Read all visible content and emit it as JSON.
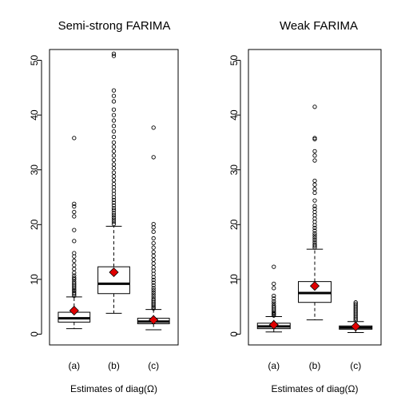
{
  "chart_data": [
    {
      "type": "boxplot",
      "title": "Semi-strong FARIMA",
      "xlabel": "Estimates of diag(Ω)",
      "ylabel": "",
      "ylim": [
        0,
        50
      ],
      "yticks": [
        0,
        10,
        20,
        30,
        40,
        50
      ],
      "categories": [
        "(a)",
        "(b)",
        "(c)"
      ],
      "boxes": [
        {
          "category": "(a)",
          "lower_whisker": 1.0,
          "q1": 2.2,
          "median": 2.9,
          "q3": 4.0,
          "upper_whisker": 6.8,
          "mean": 4.3,
          "outliers": [
            7.0,
            7.3,
            7.6,
            7.9,
            8.1,
            8.4,
            8.7,
            9.0,
            9.3,
            9.6,
            10.0,
            10.3,
            10.7,
            11.2,
            11.9,
            12.6,
            13.4,
            14.2,
            14.8,
            17.0,
            19.0,
            21.5,
            22.3,
            23.3,
            23.8,
            35.8
          ]
        },
        {
          "category": "(b)",
          "lower_whisker": 3.8,
          "q1": 7.4,
          "median": 9.2,
          "q3": 12.3,
          "upper_whisker": 19.7,
          "mean": 11.3,
          "outliers": [
            20.1,
            20.5,
            20.9,
            21.3,
            21.7,
            22.1,
            22.6,
            23.0,
            23.5,
            24.0,
            24.5,
            25.0,
            25.6,
            26.2,
            26.8,
            27.4,
            28.1,
            28.8,
            29.5,
            30.3,
            31.0,
            31.8,
            32.6,
            33.4,
            34.2,
            35.0,
            36.0,
            37.0,
            38.0,
            39.0,
            40.0,
            41.0,
            42.5,
            43.5,
            44.5,
            50.8,
            51.2
          ]
        },
        {
          "category": "(c)",
          "lower_whisker": 0.8,
          "q1": 1.9,
          "median": 2.3,
          "q3": 2.9,
          "upper_whisker": 4.5,
          "mean": 2.6,
          "outliers": [
            4.7,
            4.9,
            5.2,
            5.5,
            5.8,
            6.1,
            6.4,
            6.8,
            7.2,
            7.6,
            8.0,
            8.4,
            8.9,
            9.4,
            9.9,
            10.4,
            11.0,
            11.6,
            12.2,
            12.9,
            13.6,
            14.3,
            15.0,
            15.8,
            16.6,
            17.5,
            18.7,
            19.5,
            20.1,
            32.3,
            37.7
          ]
        }
      ]
    },
    {
      "type": "boxplot",
      "title": "Weak FARIMA",
      "xlabel": "Estimates of diag(Ω)",
      "ylabel": "",
      "ylim": [
        0,
        50
      ],
      "yticks": [
        0,
        10,
        20,
        30,
        40,
        50
      ],
      "categories": [
        "(a)",
        "(b)",
        "(c)"
      ],
      "boxes": [
        {
          "category": "(a)",
          "lower_whisker": 0.4,
          "q1": 1.0,
          "median": 1.4,
          "q3": 2.0,
          "upper_whisker": 3.2,
          "mean": 1.7,
          "outliers": [
            3.4,
            3.6,
            3.8,
            4.0,
            4.3,
            4.6,
            4.9,
            5.2,
            5.6,
            6.0,
            6.5,
            7.0,
            8.4,
            9.2,
            12.3
          ]
        },
        {
          "category": "(b)",
          "lower_whisker": 2.6,
          "q1": 5.8,
          "median": 7.5,
          "q3": 9.6,
          "upper_whisker": 15.5,
          "mean": 8.8,
          "outliers": [
            15.8,
            16.1,
            16.4,
            16.8,
            17.2,
            17.6,
            18.0,
            18.4,
            18.9,
            19.4,
            19.9,
            20.5,
            21.1,
            21.7,
            22.3,
            22.9,
            23.4,
            24.4,
            25.8,
            26.5,
            27.3,
            28.0,
            31.7,
            32.6,
            33.4,
            35.6,
            35.8,
            41.5
          ]
        },
        {
          "category": "(c)",
          "lower_whisker": 0.3,
          "q1": 0.9,
          "median": 1.2,
          "q3": 1.5,
          "upper_whisker": 2.3,
          "mean": 1.4,
          "outliers": [
            2.5,
            2.8,
            3.1,
            3.4,
            3.7,
            4.0,
            4.3,
            4.6,
            4.9,
            5.2,
            5.5,
            5.8
          ]
        }
      ]
    }
  ],
  "colors": {
    "mean_marker": "#e00000",
    "stroke": "#000000"
  }
}
